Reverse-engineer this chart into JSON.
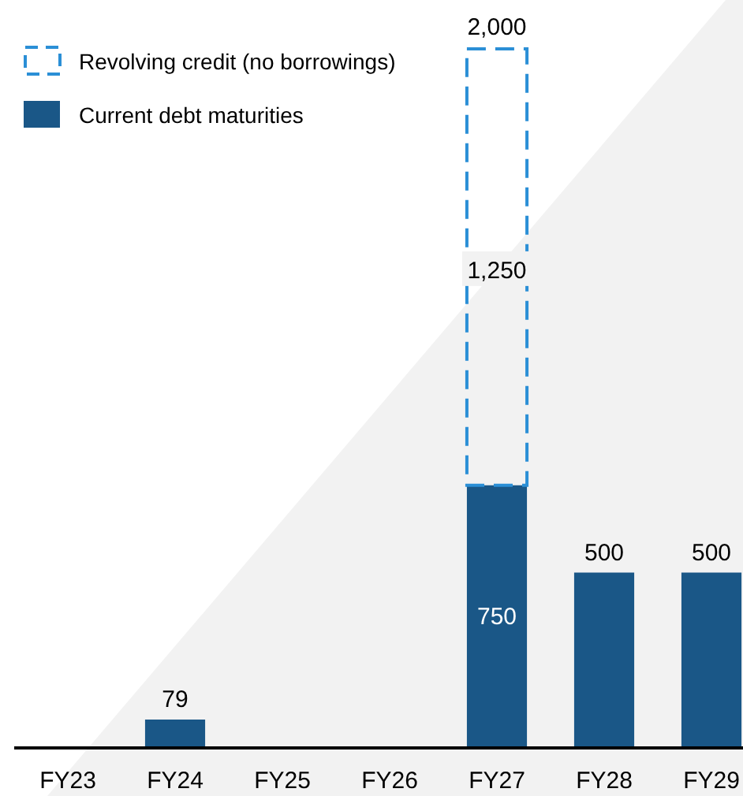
{
  "chart_data": {
    "type": "bar",
    "stacked": true,
    "categories": [
      "FY23",
      "FY24",
      "FY25",
      "FY26",
      "FY27",
      "FY28",
      "FY29"
    ],
    "series": [
      {
        "name": "Current debt maturities",
        "color": "#1a5787",
        "values": [
          null,
          79,
          null,
          null,
          750,
          500,
          500
        ],
        "value_labels": [
          null,
          "79",
          null,
          null,
          "750",
          "500",
          "500"
        ]
      },
      {
        "name": "Revolving credit (no borrowings)",
        "color": "#2b8fd6",
        "line_style": "dashed",
        "values": [
          null,
          null,
          null,
          null,
          1250,
          null,
          null
        ],
        "value_labels": [
          null,
          null,
          null,
          null,
          "1,250",
          null,
          null
        ]
      }
    ],
    "totals": [
      null,
      null,
      null,
      null,
      "2,000",
      null,
      null
    ],
    "legend": "top left"
  }
}
